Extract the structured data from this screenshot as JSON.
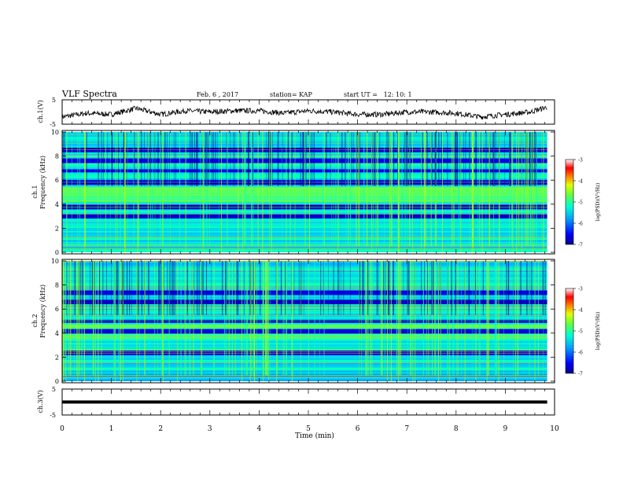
{
  "header": {
    "title": "VLF Spectra",
    "date": "Feb. 6 , 2017",
    "station": "station= KAP",
    "start": "start UT =   12: 10: 1"
  },
  "chart_data": [
    {
      "type": "line",
      "id": "ch1-waveform",
      "ylabel": "ch.1(V)",
      "ylim": [
        -5,
        5
      ],
      "yticks": [
        "5",
        "-5"
      ],
      "xlim": [
        0,
        10
      ],
      "note_series": "noisy baseline near 0 V, trace ends near 9.85 min",
      "envelope_x": [
        0,
        0.5,
        1,
        1.5,
        2,
        2.5,
        3,
        3.5,
        4,
        4.5,
        5,
        5.5,
        6,
        6.5,
        7,
        7.5,
        8,
        8.5,
        9,
        9.5,
        9.85
      ],
      "envelope_y": [
        -2,
        -0.5,
        -1,
        1.5,
        -1,
        0.5,
        0,
        0.5,
        0.5,
        -0.5,
        0.5,
        0,
        -1,
        -1,
        0,
        0,
        -0.5,
        -2,
        -1,
        0,
        2
      ]
    },
    {
      "type": "heatmap",
      "id": "ch1-spectrogram",
      "ylabel_channel": "ch.1",
      "ylabel": "Frequency (kHz)",
      "ylim": [
        0,
        10
      ],
      "yticks": [
        "0",
        "2",
        "4",
        "6",
        "8",
        "10"
      ],
      "xlim": [
        0,
        9.85
      ],
      "bright_band_khz": [
        4.2,
        5.4
      ],
      "dark_bands_khz": [
        3.0,
        3.8,
        5.8,
        6.8,
        7.6,
        8.5
      ],
      "colorbar": {
        "ticks": [
          "-3",
          "-4",
          "-5",
          "-6",
          "-7"
        ],
        "label": "log(PSD)(V²/Hz)",
        "range": [
          -7,
          -3
        ]
      }
    },
    {
      "type": "heatmap",
      "id": "ch2-spectrogram",
      "ylabel_channel": "ch.2",
      "ylabel": "Frequency (kHz)",
      "ylim": [
        0,
        10
      ],
      "yticks": [
        "0",
        "2",
        "4",
        "6",
        "8",
        "10"
      ],
      "xlim": [
        0,
        9.85
      ],
      "bright_band_khz": [
        3.4,
        4.8
      ],
      "dark_bands_khz": [
        2.4,
        4.2,
        5.0,
        6.6,
        7.4
      ],
      "colorbar": {
        "ticks": [
          "-3",
          "-4",
          "-5",
          "-6",
          "-7"
        ],
        "label": "log(PSD)(V²/Hz)",
        "range": [
          -7,
          -3
        ]
      }
    },
    {
      "type": "line",
      "id": "ch3-waveform",
      "ylabel": "ch.3(V)",
      "ylim": [
        -5,
        5
      ],
      "yticks": [
        "5",
        "-5"
      ],
      "xlim": [
        0,
        10
      ],
      "x": [
        0,
        9.85
      ],
      "y": [
        0,
        0
      ]
    }
  ],
  "xaxis": {
    "label": "Time (min)",
    "ticks": [
      "0",
      "1",
      "2",
      "3",
      "4",
      "5",
      "6",
      "7",
      "8",
      "9",
      "10"
    ]
  },
  "colors": {
    "axis": "#000000",
    "colormap": [
      "#00008c",
      "#0000ff",
      "#0060ff",
      "#00c0ff",
      "#40ff80",
      "#a0ff00",
      "#ffff00",
      "#ff8000",
      "#ff0000",
      "#ffffff"
    ]
  }
}
